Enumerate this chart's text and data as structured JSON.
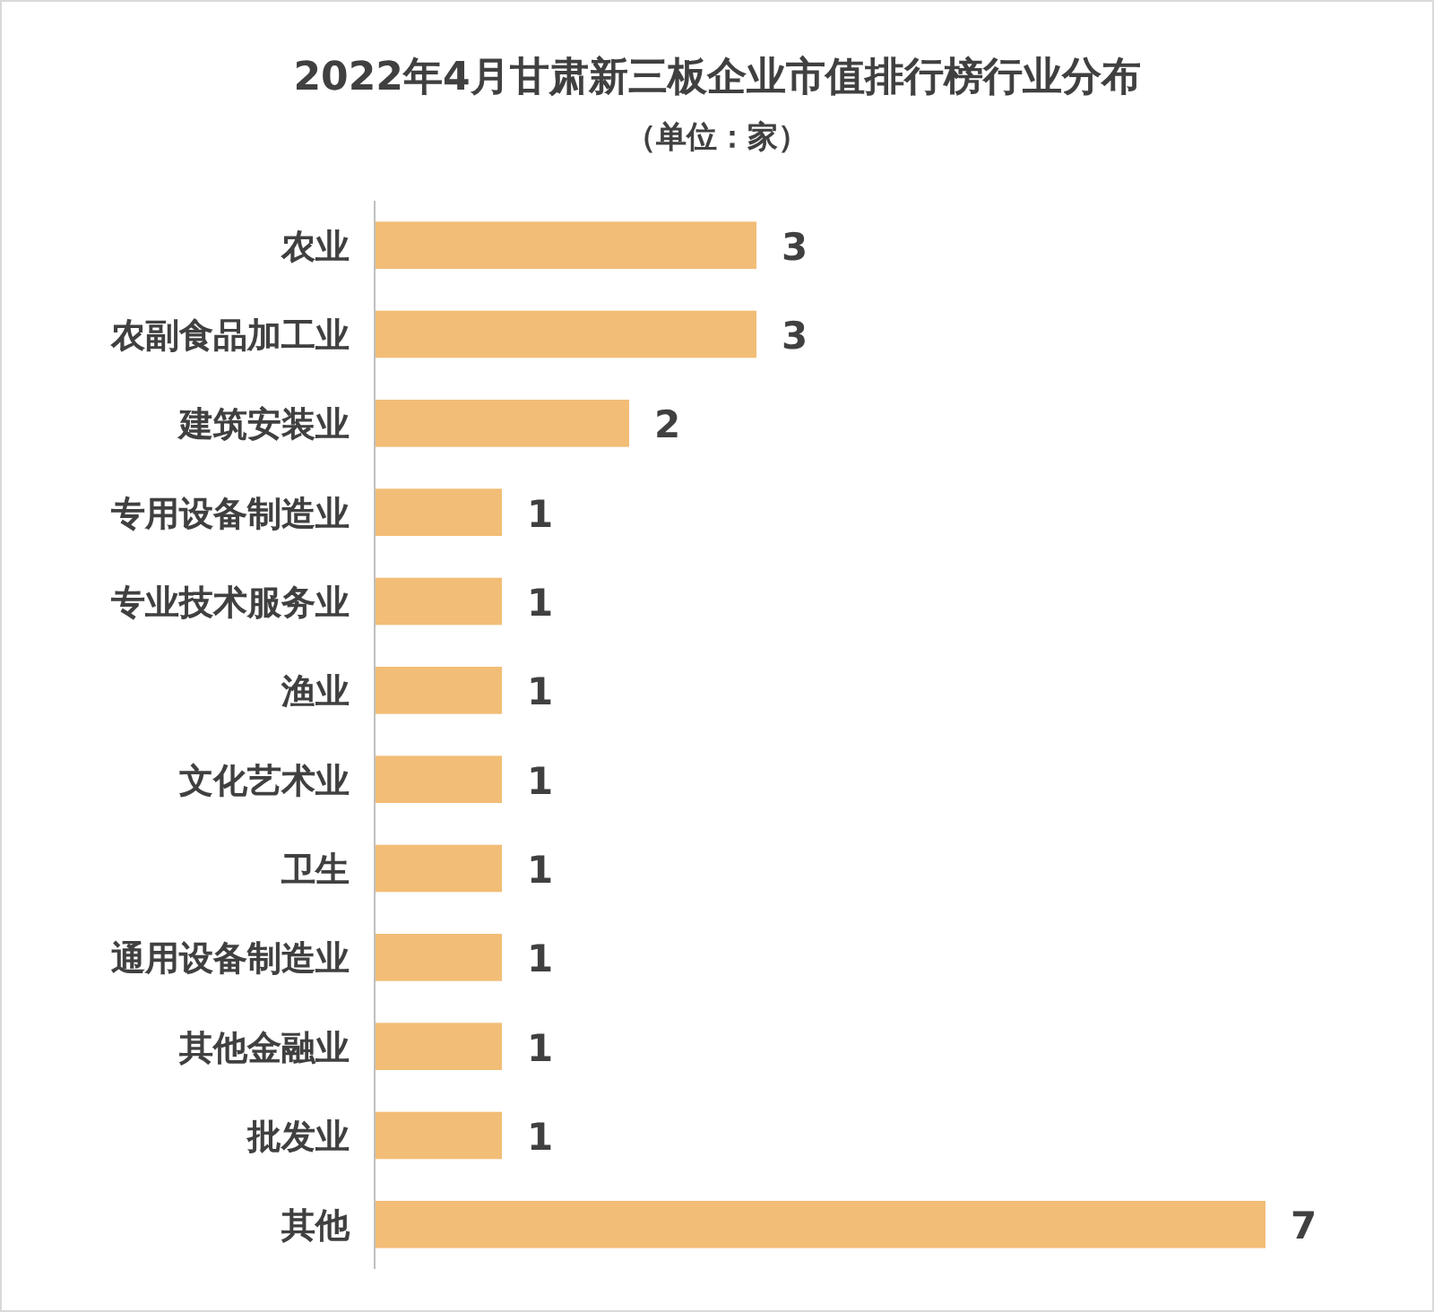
{
  "chart_data": {
    "type": "bar",
    "orientation": "horizontal",
    "title": "2022年4月甘肃新三板企业市值排行榜行业分布",
    "subtitle": "（单位：家）",
    "categories": [
      "农业",
      "农副食品加工业",
      "建筑安装业",
      "专用设备制造业",
      "专业技术服务业",
      "渔业",
      "文化艺术业",
      "卫生",
      "通用设备制造业",
      "其他金融业",
      "批发业",
      "其他"
    ],
    "values": [
      3,
      3,
      2,
      1,
      1,
      1,
      1,
      1,
      1,
      1,
      1,
      7
    ],
    "color": "#f2bd76",
    "data_labels": true
  }
}
